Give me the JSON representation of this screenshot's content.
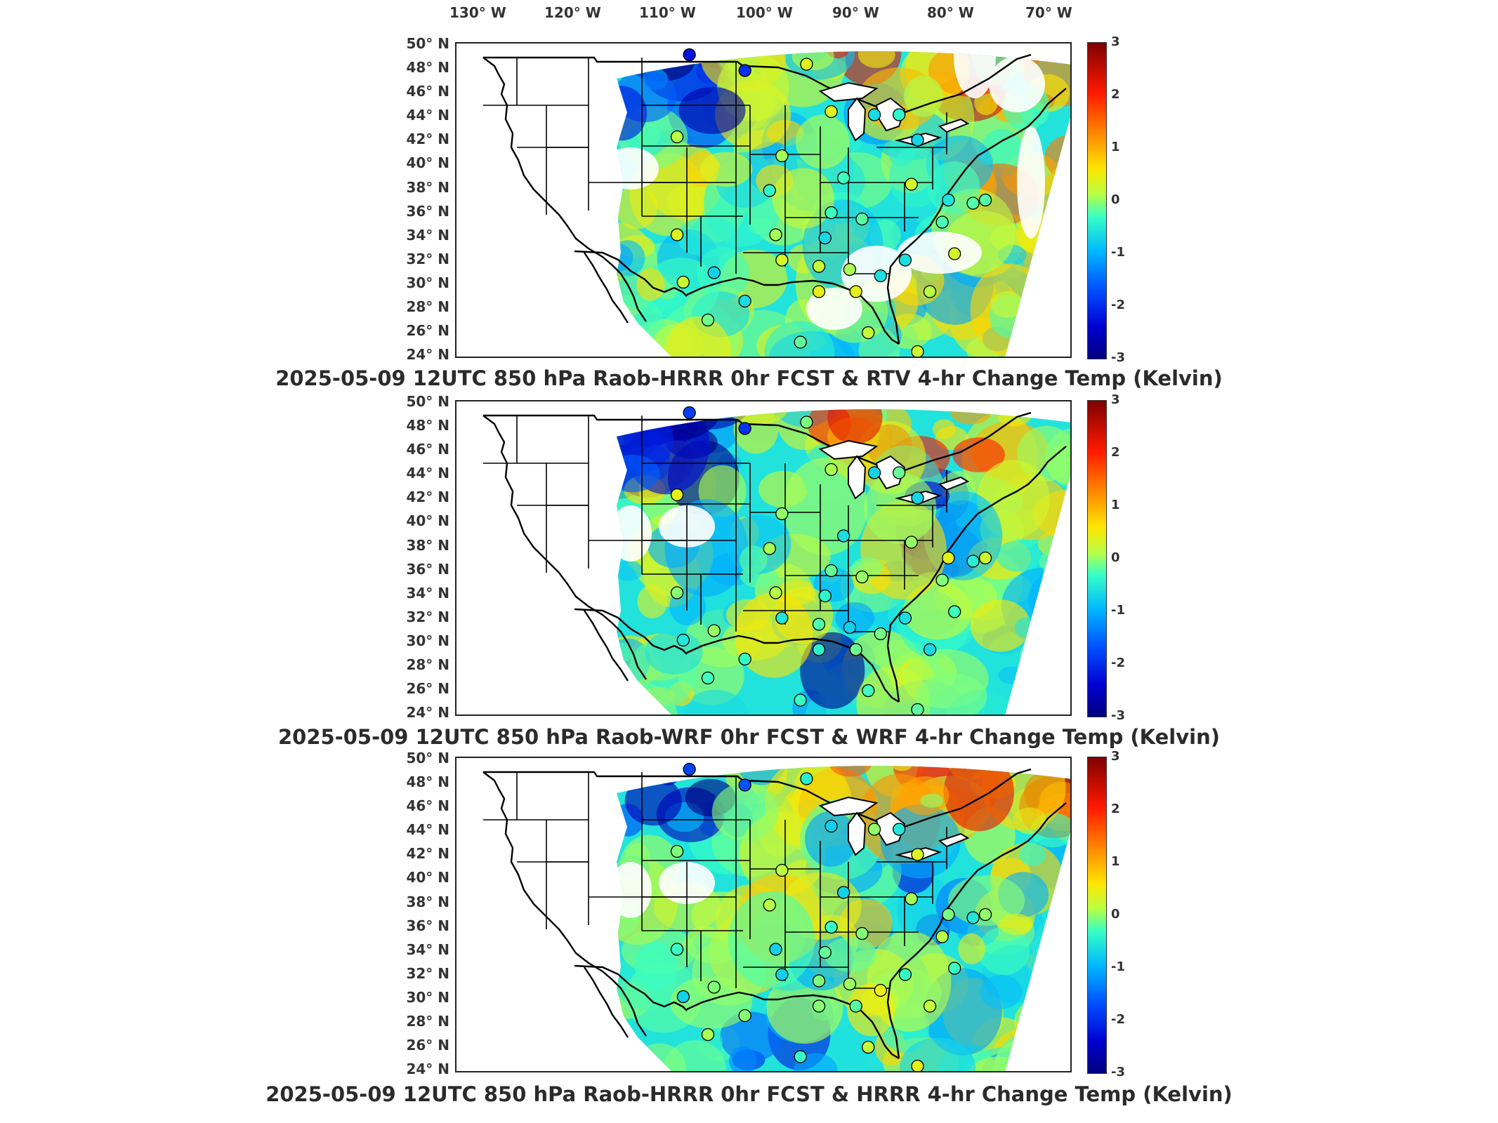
{
  "lon_labels": [
    "130° W",
    "120° W",
    "110° W",
    "100° W",
    "90° W",
    "80° W",
    "70° W"
  ],
  "lat_labels": [
    "50° N",
    "48° N",
    "46° N",
    "44° N",
    "42° N",
    "40° N",
    "38° N",
    "36° N",
    "34° N",
    "32° N",
    "30° N",
    "28° N",
    "26° N",
    "24° N"
  ],
  "colorbar": {
    "min": -3,
    "max": 3,
    "ticks": [
      "3",
      "2",
      "1",
      "0",
      "-1",
      "-2",
      "-3"
    ],
    "colors": [
      "#00007f",
      "#0000d0",
      "#0050ff",
      "#00b8ff",
      "#37ffc4",
      "#b8ff45",
      "#ffe600",
      "#ff8a00",
      "#ff1a00",
      "#7f0000"
    ]
  },
  "panels": [
    {
      "title": "2025-05-09 12UTC 850 hPa Raob-HRRR 0hr FCST & RTV 4-hr Change Temp (Kelvin)"
    },
    {
      "title": "2025-05-09 12UTC 850 hPa Raob-WRF 0hr FCST & WRF 4-hr Change Temp (Kelvin)"
    },
    {
      "title": "2025-05-09 12UTC 850 hPa Raob-HRRR 0hr FCST & HRRR 4-hr Change Temp (Kelvin)"
    }
  ]
}
